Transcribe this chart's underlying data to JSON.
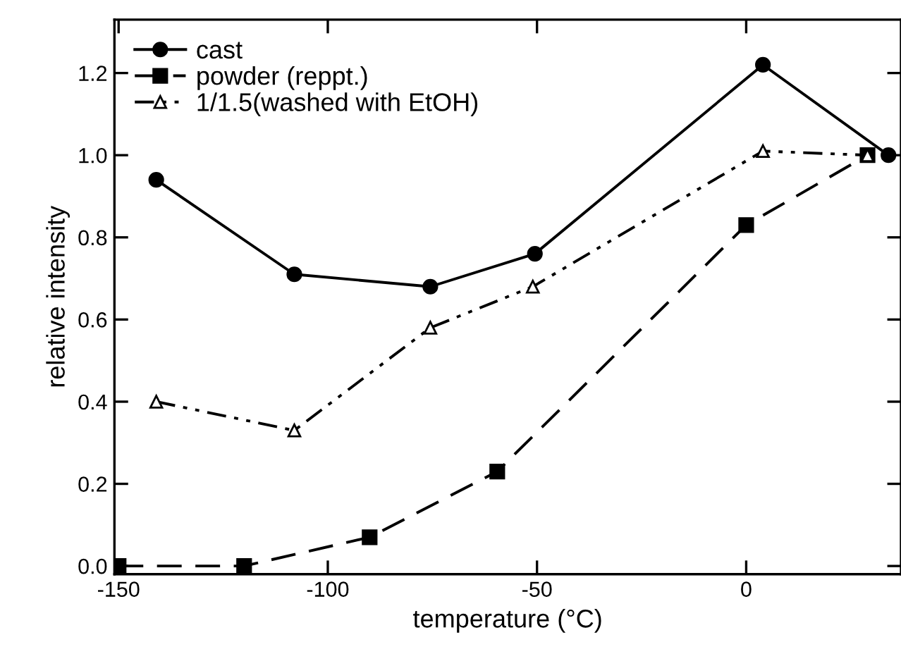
{
  "chart_data": {
    "type": "line",
    "xlabel": "temperature (°C)",
    "ylabel": "relative intensity",
    "xlim": [
      -151,
      37
    ],
    "xticks": [
      -150,
      -100,
      -50,
      0
    ],
    "ylim": [
      -0.02,
      1.33
    ],
    "yticks": [
      {
        "value": 0,
        "label": "0.0"
      },
      {
        "value": 0.2,
        "label": "0.2"
      },
      {
        "value": 0.4,
        "label": "0.4"
      },
      {
        "value": 0.6,
        "label": "0.6"
      },
      {
        "value": 0.8,
        "label": "0.8"
      },
      {
        "value": 1,
        "label": "1.0"
      },
      {
        "value": 1.2,
        "label": "1.2"
      }
    ],
    "legend": "top left",
    "grid": false,
    "series": [
      {
        "name": "cast",
        "color": "#000000",
        "marker": "circle",
        "line_style": "solid",
        "x": [
          -141,
          -108,
          -75.5,
          -50.5,
          4,
          34
        ],
        "values": [
          0.94,
          0.71,
          0.68,
          0.76,
          1.22,
          1.0
        ]
      },
      {
        "name": "powder (reppt.)",
        "color": "#000000",
        "marker": "square",
        "line_style": "dashed",
        "x": [
          -150,
          -120,
          -90,
          -59.5,
          0,
          29
        ],
        "values": [
          0.0,
          0.0,
          0.07,
          0.23,
          0.83,
          1.0
        ]
      },
      {
        "name": "1/1.5(washed with EtOH)",
        "color": "#000000",
        "marker": "triangle",
        "line_style": "dashdot",
        "x": [
          -141,
          -108,
          -75.5,
          -51,
          4,
          29
        ],
        "values": [
          0.4,
          0.33,
          0.58,
          0.68,
          1.01,
          1.0
        ]
      }
    ]
  }
}
